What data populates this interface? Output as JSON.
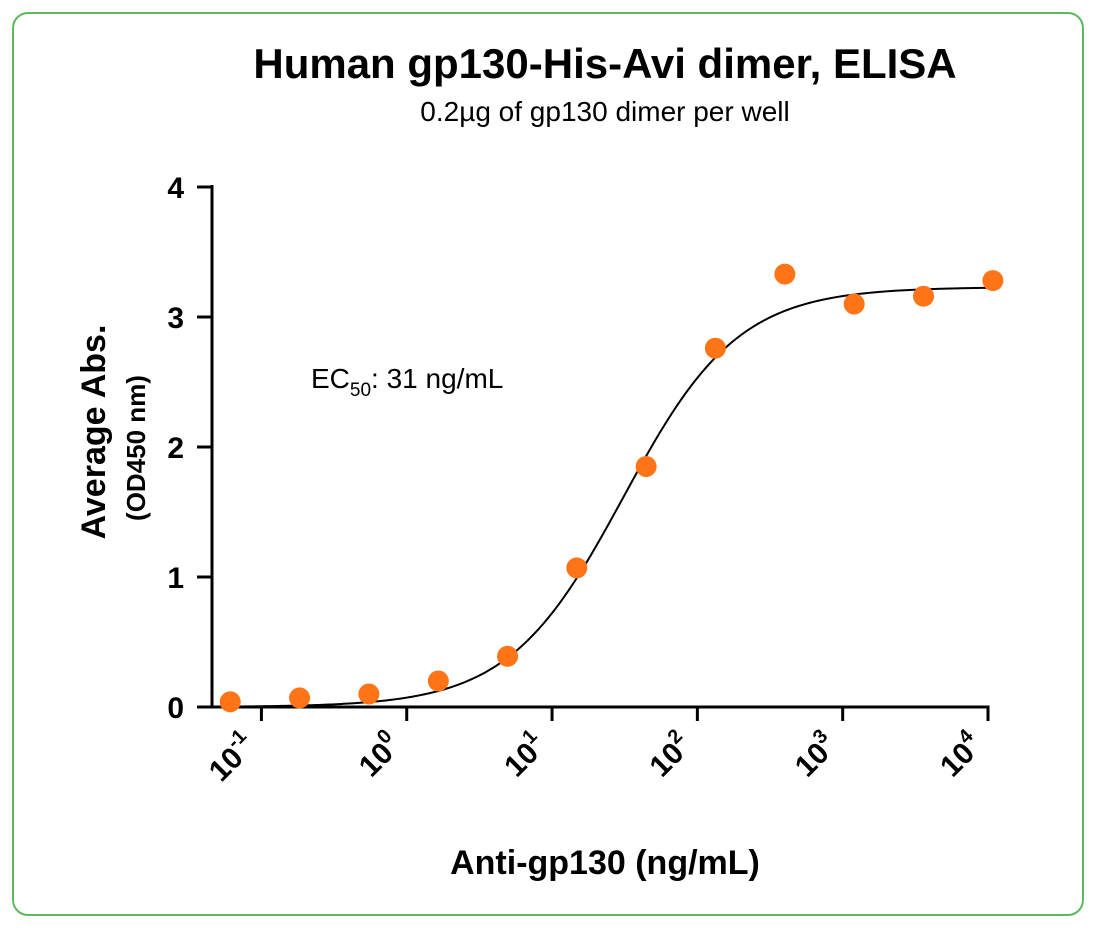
{
  "colors": {
    "frame": "#5cb85c",
    "points": "#ff7417",
    "curve": "#000000"
  },
  "chart_data": {
    "type": "scatter",
    "title": "Human gp130-His-Avi dimer, ELISA",
    "subtitle": "0.2µg of gp130 dimer per well",
    "xlabel": "Anti-gp130  (ng/mL)",
    "ylabel": "Average Abs.",
    "ylabel_secondary": "(OD450 nm)",
    "x_scale": "log10",
    "xlim": [
      0.0457,
      10000
    ],
    "ylim": [
      0,
      4
    ],
    "y_ticks": [
      "0",
      "1",
      "2",
      "3",
      "4"
    ],
    "x_ticks": [
      {
        "base": "10",
        "exp": "-1",
        "value": 0.1
      },
      {
        "base": "10",
        "exp": "0",
        "value": 1
      },
      {
        "base": "10",
        "exp": "1",
        "value": 10
      },
      {
        "base": "10",
        "exp": "2",
        "value": 100
      },
      {
        "base": "10",
        "exp": "3",
        "value": 1000
      },
      {
        "base": "10",
        "exp": "4",
        "value": 10000
      }
    ],
    "series": [
      {
        "x": [
          0.061,
          0.183,
          0.549,
          1.65,
          4.94,
          14.8,
          44.4,
          133,
          400,
          1200,
          3600,
          10800
        ],
        "y": [
          0.04,
          0.07,
          0.1,
          0.2,
          0.39,
          1.07,
          1.85,
          2.76,
          3.33,
          3.1,
          3.16,
          3.28
        ]
      }
    ],
    "fit": {
      "model": "4PL",
      "bottom": 0.0,
      "top": 3.23,
      "ec50": 31,
      "hill": 1.1
    },
    "annotation": {
      "text": "EC",
      "subscript": "50",
      "suffix": ": 31 ng/mL"
    }
  }
}
